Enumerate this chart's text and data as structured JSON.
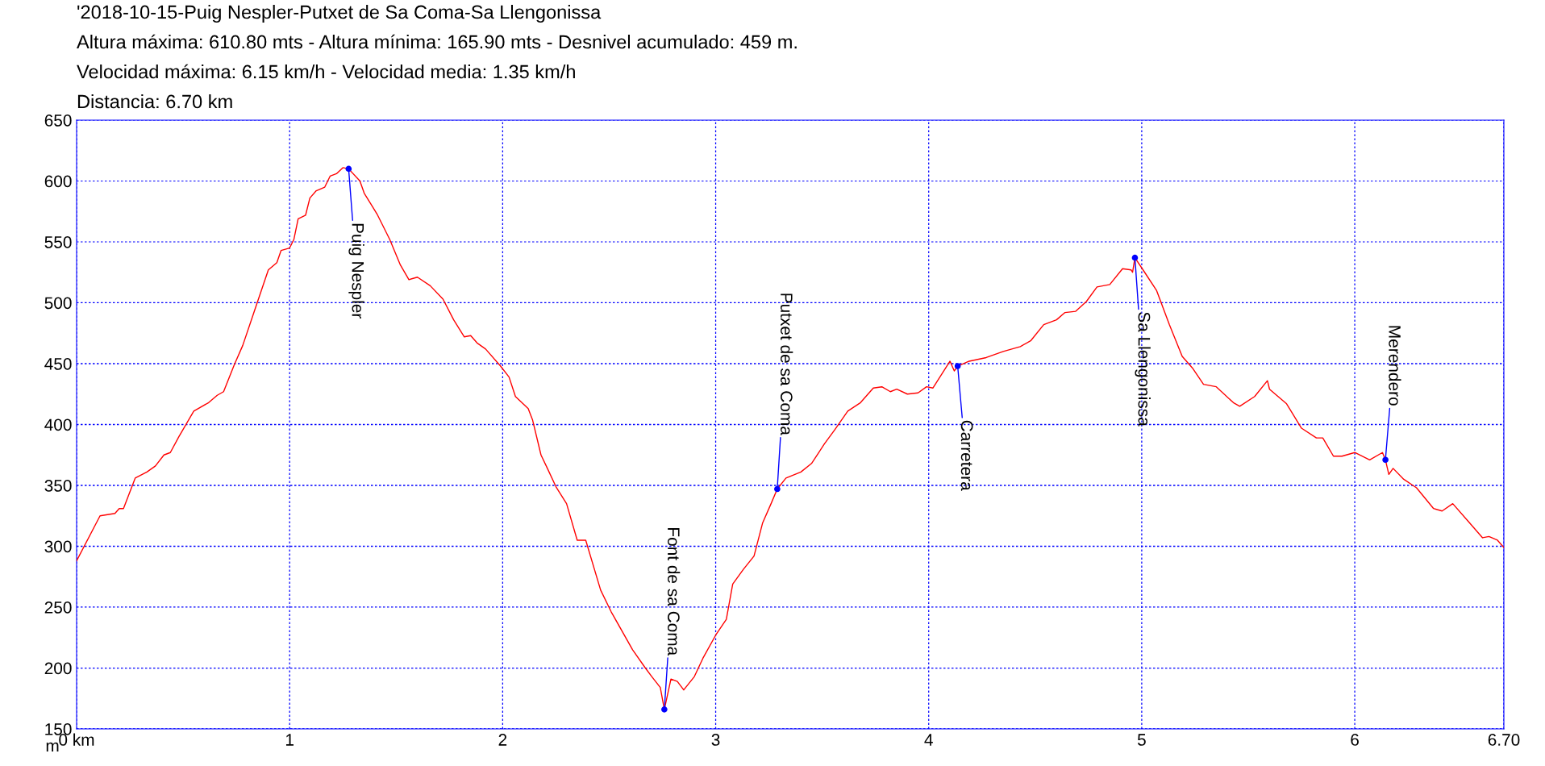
{
  "chart_data": {
    "type": "line",
    "title": "'2018-10-15-Puig Nespler-Putxet de Sa Coma-Sa Llengonissa",
    "subtitle": "Altura máxima: 610.80 mts - Altura mínima: 165.90 mts - Desnivel acumulado: 459 m.\nVelocidad máxima: 6.15 km/h - Velocidad media: 1.35 km/h\nDistancia: 6.70 km",
    "ylabel": "m",
    "series": [
      {
        "color": "#ff0000",
        "x": [
          0,
          0.11,
          0.18,
          0.2,
          0.22,
          0.275,
          0.33,
          0.37,
          0.41,
          0.44,
          0.48,
          0.55,
          0.62,
          0.66,
          0.69,
          0.74,
          0.78,
          0.84,
          0.9,
          0.94,
          0.96,
          1.0,
          1.02,
          1.04,
          1.075,
          1.095,
          1.125,
          1.165,
          1.19,
          1.22,
          1.25,
          1.277,
          1.33,
          1.35,
          1.41,
          1.47,
          1.52,
          1.56,
          1.6,
          1.66,
          1.72,
          1.77,
          1.82,
          1.85,
          1.88,
          1.92,
          1.99,
          2.03,
          2.06,
          2.12,
          2.14,
          2.18,
          2.21,
          2.25,
          2.3,
          2.35,
          2.39,
          2.46,
          2.51,
          2.61,
          2.67,
          2.7,
          2.74,
          2.759,
          2.79,
          2.82,
          2.85,
          2.9,
          2.94,
          3.0,
          3.05,
          3.08,
          3.13,
          3.18,
          3.22,
          3.26,
          3.289,
          3.33,
          3.4,
          3.45,
          3.51,
          3.56,
          3.62,
          3.68,
          3.74,
          3.78,
          3.82,
          3.85,
          3.9,
          3.95,
          3.99,
          4.02,
          4.1,
          4.12,
          4.136,
          4.19,
          4.27,
          4.35,
          4.43,
          4.48,
          4.54,
          4.6,
          4.64,
          4.69,
          4.74,
          4.79,
          4.85,
          4.91,
          4.95,
          4.957,
          4.968,
          5.01,
          5.07,
          5.13,
          5.19,
          5.24,
          5.29,
          5.35,
          5.43,
          5.46,
          5.53,
          5.59,
          5.6,
          5.68,
          5.75,
          5.82,
          5.85,
          5.9,
          5.94,
          6.0,
          6.07,
          6.13,
          6.144,
          6.16,
          6.18,
          6.23,
          6.29,
          6.37,
          6.41,
          6.46,
          6.53,
          6.6,
          6.63,
          6.67,
          6.7
        ],
        "values": [
          288,
          325,
          327,
          331,
          331,
          356,
          361,
          366,
          375,
          377,
          390,
          411,
          418,
          424,
          427,
          449,
          465,
          496,
          527,
          533,
          543,
          545,
          552,
          569,
          572,
          586,
          592,
          595,
          604,
          606,
          611,
          610,
          600,
          590,
          573,
          552,
          531,
          519,
          521,
          514,
          503,
          486,
          472,
          473,
          467,
          462,
          448,
          439,
          423,
          413,
          404,
          375,
          364,
          349,
          335,
          305,
          305,
          264,
          246,
          215,
          200,
          193,
          184,
          166,
          191,
          189,
          182,
          193,
          208,
          227,
          240,
          269,
          281,
          292,
          319,
          335,
          347,
          356,
          361,
          368,
          384,
          396,
          411,
          418,
          430,
          431,
          427,
          429,
          425,
          426,
          431,
          430,
          452,
          444,
          448,
          452,
          455,
          460,
          464,
          469,
          482,
          486,
          492,
          493,
          501,
          513,
          515,
          528,
          527,
          525,
          537,
          526,
          510,
          482,
          456,
          446,
          433,
          431,
          418,
          415,
          423,
          436,
          429,
          417,
          397,
          389,
          389,
          374,
          374,
          377,
          371,
          377,
          371,
          359,
          364,
          355,
          348,
          331,
          329,
          335,
          321,
          307,
          308,
          305,
          299
        ]
      }
    ],
    "annotations": [
      {
        "text": "Puig Nespler",
        "x": 1.277,
        "y": 610
      },
      {
        "text": "Font de sa Coma",
        "x": 2.759,
        "y": 166
      },
      {
        "text": "Putxet de sa Coma",
        "x": 3.289,
        "y": 347
      },
      {
        "text": "Carretera",
        "x": 4.136,
        "y": 448
      },
      {
        "text": "Sa Llengonissa",
        "x": 4.968,
        "y": 537
      },
      {
        "text": "Merendero",
        "x": 6.144,
        "y": 371
      }
    ],
    "xlim": [
      0,
      6.7
    ],
    "xticks": [
      {
        "value": 0,
        "label": "0 km"
      },
      1,
      2,
      3,
      4,
      5,
      6,
      {
        "value": 6.7,
        "label": "6.70"
      }
    ],
    "ylim": [
      150,
      650
    ],
    "yticks": [
      150,
      200,
      250,
      300,
      350,
      400,
      450,
      500,
      550,
      600,
      650
    ],
    "grid": true,
    "line_style": "solid"
  }
}
